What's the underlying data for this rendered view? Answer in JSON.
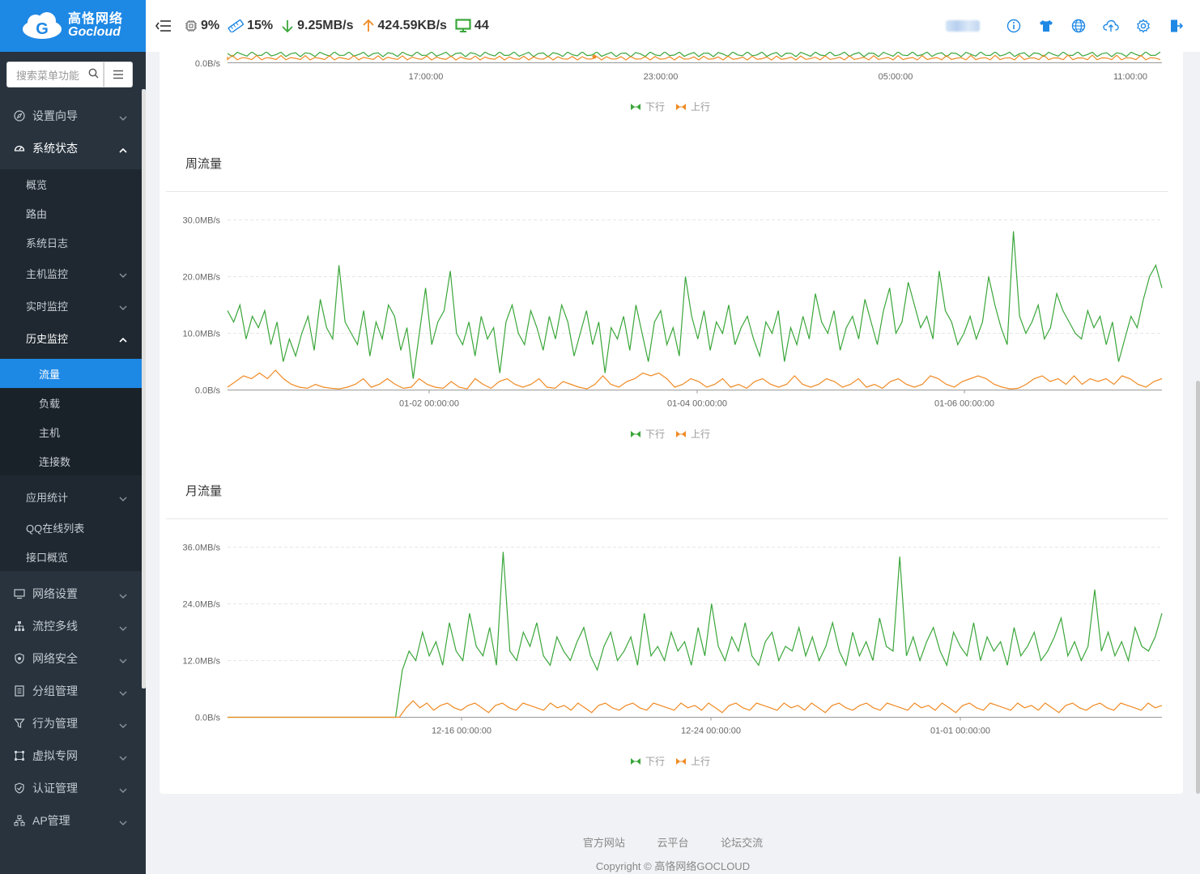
{
  "brand": {
    "cn": "高恪网络",
    "en": "Gocloud"
  },
  "search": {
    "placeholder": "搜索菜单功能"
  },
  "header": {
    "cpu": "9%",
    "mem": "15%",
    "down": "9.25MB/s",
    "up": "424.59KB/s",
    "hosts": "44"
  },
  "nav": {
    "wizard": "设置向导",
    "status": "系统状态",
    "status_sub": {
      "overview": "概览",
      "route": "路由",
      "syslog": "系统日志",
      "host_monitor": "主机监控",
      "realtime": "实时监控",
      "history": "历史监控",
      "history_sub": {
        "traffic": "流量",
        "load": "负载",
        "host": "主机",
        "conn": "连接数"
      },
      "appstat": "应用统计",
      "qq": "QQ在线列表",
      "iface": "接口概览"
    },
    "network": "网络设置",
    "flow": "流控多线",
    "security": "网络安全",
    "group": "分组管理",
    "behavior": "行为管理",
    "vpn": "虚拟专网",
    "auth": "认证管理",
    "ap": "AP管理"
  },
  "colors": {
    "down": "#3aa63a",
    "up": "#f08a24",
    "accent": "#1e88e5"
  },
  "chart_data": [
    {
      "type": "line",
      "title": "",
      "x_ticks": [
        "17:00:00",
        "23:00:00",
        "05:00:00",
        "11:00:00"
      ],
      "y_ticks": [
        "0.0B/s"
      ],
      "legend": [
        "下行",
        "上行"
      ],
      "note": "partially visible daily chart"
    },
    {
      "type": "line",
      "title": "周流量",
      "x_ticks": [
        "01-02 00:00:00",
        "01-04 00:00:00",
        "01-06 00:00:00"
      ],
      "y_ticks": [
        "0.0B/s",
        "10.0MB/s",
        "20.0MB/s",
        "30.0MB/s"
      ],
      "ylim": [
        0,
        30
      ],
      "legend": [
        "下行",
        "上行"
      ],
      "series": [
        {
          "name": "下行",
          "values": [
            14,
            12,
            15,
            9,
            13,
            11,
            14,
            8,
            12,
            5,
            9,
            6,
            10,
            13,
            7,
            16,
            11,
            9,
            22,
            12,
            10,
            8,
            14,
            6,
            12,
            9,
            15,
            13,
            7,
            11,
            2,
            10,
            18,
            8,
            12,
            14,
            21,
            10,
            8,
            12,
            6,
            13,
            9,
            11,
            3,
            12,
            15,
            10,
            8,
            14,
            11,
            7,
            13,
            9,
            15,
            12,
            6,
            10,
            14,
            8,
            12,
            3,
            11,
            9,
            13,
            7,
            15,
            10,
            5,
            12,
            14,
            8,
            11,
            6,
            20,
            13,
            9,
            14,
            7,
            12,
            10,
            15,
            8,
            11,
            13,
            9,
            6,
            12,
            10,
            14,
            5,
            11,
            8,
            13,
            9,
            17,
            12,
            10,
            14,
            7,
            11,
            13,
            9,
            16,
            12,
            8,
            14,
            18,
            10,
            12,
            19,
            15,
            11,
            13,
            9,
            21,
            14,
            12,
            8,
            10,
            13,
            9,
            12,
            20,
            15,
            11,
            8,
            28,
            13,
            10,
            12,
            15,
            9,
            11,
            17,
            14,
            12,
            10,
            9,
            14,
            11,
            13,
            8,
            12,
            5,
            9,
            13,
            11,
            16,
            20,
            22,
            18
          ]
        },
        {
          "name": "上行",
          "values": [
            0.5,
            1.5,
            2.5,
            2,
            3,
            2,
            3.5,
            2,
            1,
            0.5,
            0.3,
            1,
            0.5,
            0.3,
            0.2,
            0.5,
            1,
            2,
            0.5,
            1,
            2,
            1,
            0.3,
            0.5,
            2,
            1,
            0.5,
            0.3,
            1.5,
            0.5,
            0.2,
            2,
            1,
            0.3,
            1.5,
            2,
            1,
            0.5,
            1,
            2,
            0.5,
            0.3,
            1.5,
            1,
            0.5,
            0.2,
            1,
            2.5,
            1,
            0.5,
            1.5,
            2,
            3,
            2.5,
            3,
            2,
            0.5,
            1,
            2,
            1.5,
            0.5,
            1,
            2,
            0.5,
            1,
            0.3,
            1.5,
            2,
            1,
            0.5,
            1,
            2.5,
            1,
            0.5,
            1,
            2,
            1.5,
            0.5,
            1,
            2,
            0.5,
            1,
            0.3,
            1.5,
            2,
            1,
            0.5,
            1,
            2.5,
            2,
            1,
            0.5,
            1.5,
            2,
            2.5,
            2,
            1,
            0.5,
            0.2,
            0.3,
            1,
            2,
            2.5,
            1.5,
            2,
            1,
            2.5,
            1,
            2,
            1.5,
            2,
            1,
            2.5,
            2,
            1,
            0.5,
            1.5,
            2
          ]
        }
      ]
    },
    {
      "type": "line",
      "title": "月流量",
      "x_ticks": [
        "12-16 00:00:00",
        "12-24 00:00:00",
        "01-01 00:00:00"
      ],
      "y_ticks": [
        "0.0B/s",
        "12.0MB/s",
        "24.0MB/s",
        "36.0MB/s"
      ],
      "ylim": [
        0,
        36
      ],
      "legend": [
        "下行",
        "上行"
      ],
      "series": [
        {
          "name": "下行",
          "values": [
            0,
            0,
            0,
            0,
            0,
            0,
            0,
            0,
            0,
            0,
            0,
            0,
            0,
            0,
            0,
            0,
            0,
            0,
            0,
            0,
            0,
            0,
            0,
            0,
            0,
            0,
            10,
            14,
            12,
            18,
            13,
            16,
            11,
            20,
            14,
            12,
            22,
            15,
            13,
            19,
            11,
            35,
            14,
            12,
            18,
            15,
            20,
            13,
            11,
            17,
            14,
            12,
            16,
            19,
            13,
            10,
            15,
            18,
            12,
            14,
            17,
            11,
            22,
            13,
            15,
            12,
            18,
            14,
            16,
            11,
            19,
            13,
            24,
            15,
            12,
            17,
            14,
            20,
            13,
            11,
            16,
            18,
            12,
            15,
            14,
            19,
            13,
            17,
            12,
            15,
            20,
            14,
            11,
            18,
            13,
            16,
            12,
            21,
            15,
            14,
            34,
            13,
            17,
            12,
            16,
            19,
            14,
            11,
            18,
            15,
            13,
            20,
            12,
            17,
            14,
            16,
            11,
            19,
            13,
            15,
            18,
            12,
            14,
            17,
            21,
            13,
            16,
            12,
            15,
            27,
            14,
            18,
            13,
            16,
            12,
            19,
            15,
            14,
            17,
            22
          ]
        },
        {
          "name": "上行",
          "values": [
            0,
            0,
            0,
            0,
            0,
            0,
            0,
            0,
            0,
            0,
            0,
            0,
            0,
            0,
            0,
            0,
            0,
            0,
            0,
            0,
            0,
            0,
            0,
            0,
            0,
            0,
            2,
            3.5,
            2,
            3,
            1.5,
            2.5,
            3,
            2,
            1.5,
            2.5,
            3,
            2,
            1,
            2.5,
            3,
            2,
            1.5,
            3,
            2.5,
            2,
            1.5,
            3,
            2,
            2.5,
            1.5,
            3,
            2,
            1,
            2.5,
            3,
            2,
            1.5,
            2.5,
            3,
            2,
            1.5,
            3,
            2.5,
            2,
            1.5,
            3,
            2,
            2.5,
            1.5,
            3,
            2,
            1,
            2.5,
            3,
            2,
            1.5,
            3,
            2.5,
            2,
            1.5,
            3,
            2,
            2.5,
            1.5,
            3,
            2,
            1,
            2.5,
            3,
            2,
            1.5,
            2.5,
            3,
            2,
            1.5,
            3,
            2.5,
            2,
            1.5,
            3,
            2,
            2.5,
            1.5,
            3,
            2,
            1,
            2.5,
            3,
            2,
            1.5,
            3,
            2.5,
            2,
            1.5,
            3,
            2,
            2.5,
            1.5,
            3,
            2,
            1,
            2.5,
            3,
            2,
            1.5,
            2.5,
            3,
            2,
            1.5,
            3,
            2.5,
            2,
            1.5,
            3,
            2,
            2.5
          ]
        }
      ]
    }
  ],
  "footer": {
    "link1": "官方网站",
    "link2": "云平台",
    "link3": "论坛交流",
    "copyright": "Copyright © 高恪网络GOCLOUD"
  }
}
